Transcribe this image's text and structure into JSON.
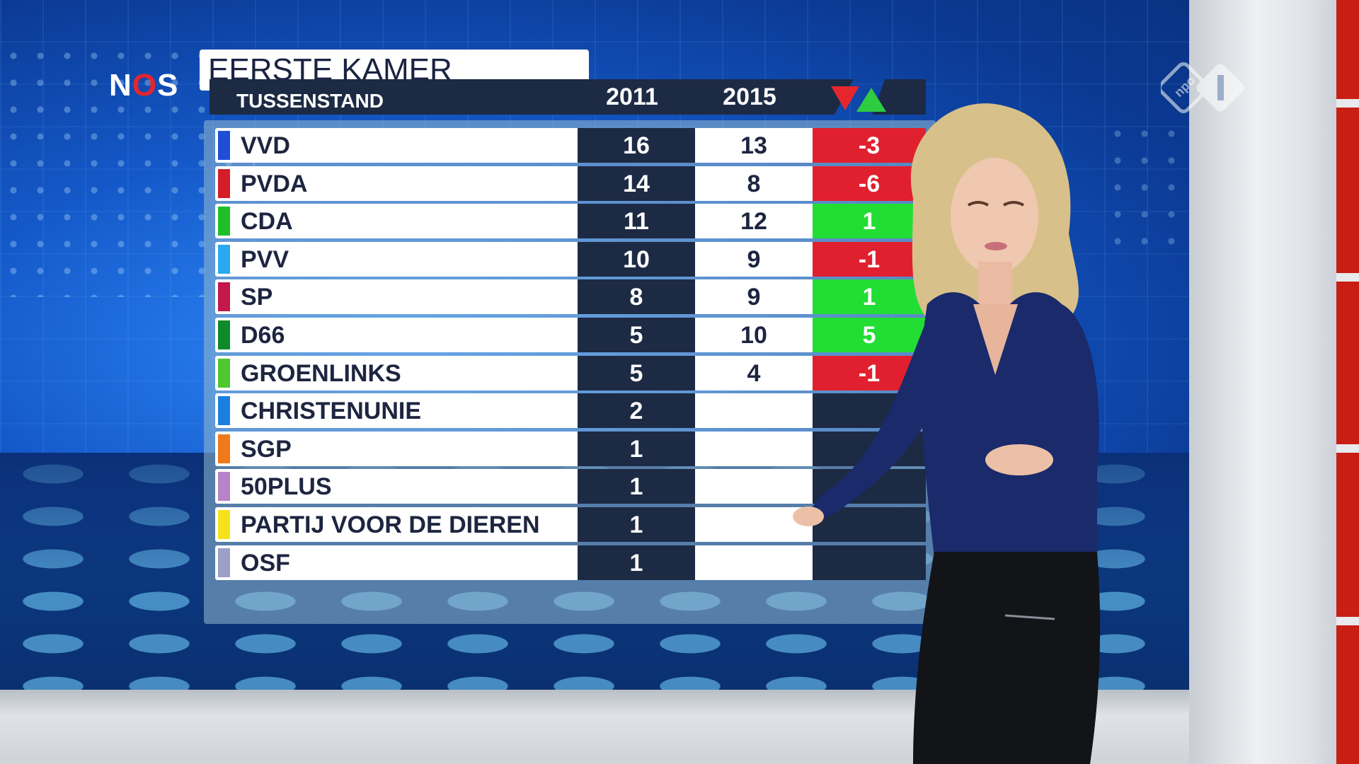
{
  "logos": {
    "broadcaster_left": "NOS",
    "broadcaster_right_icon": "npo1-logo"
  },
  "board": {
    "title": "EERSTE KAMER",
    "subtitle": "TUSSENSTAND",
    "columns": [
      "2011",
      "2015"
    ],
    "change_icons": [
      "down-triangle-icon",
      "up-triangle-icon"
    ],
    "colors": {
      "header": "#1d2a44",
      "loss": "#e0202e",
      "gain": "#22dd33"
    }
  },
  "parties": [
    {
      "name": "VVD",
      "color": "#1e4fd6",
      "s2011": "16",
      "s2015": "13",
      "diff": "-3",
      "trend": "neg"
    },
    {
      "name": "PVDA",
      "color": "#d41e2a",
      "s2011": "14",
      "s2015": "8",
      "diff": "-6",
      "trend": "neg"
    },
    {
      "name": "CDA",
      "color": "#1fbf2a",
      "s2011": "11",
      "s2015": "12",
      "diff": "1",
      "trend": "pos"
    },
    {
      "name": "PVV",
      "color": "#2aa8f0",
      "s2011": "10",
      "s2015": "9",
      "diff": "-1",
      "trend": "neg"
    },
    {
      "name": "SP",
      "color": "#c2184a",
      "s2011": "8",
      "s2015": "9",
      "diff": "1",
      "trend": "pos"
    },
    {
      "name": "D66",
      "color": "#0f8a2a",
      "s2011": "5",
      "s2015": "10",
      "diff": "5",
      "trend": "pos"
    },
    {
      "name": "GROENLINKS",
      "color": "#4fc830",
      "s2011": "5",
      "s2015": "4",
      "diff": "-1",
      "trend": "neg"
    },
    {
      "name": "CHRISTENUNIE",
      "color": "#1b7fe0",
      "s2011": "2",
      "s2015": "",
      "diff": "",
      "trend": "none"
    },
    {
      "name": "SGP",
      "color": "#f07a1a",
      "s2011": "1",
      "s2015": "",
      "diff": "",
      "trend": "none"
    },
    {
      "name": "50PLUS",
      "color": "#b784c8",
      "s2011": "1",
      "s2015": "",
      "diff": "",
      "trend": "none"
    },
    {
      "name": "PARTIJ VOOR DE DIEREN",
      "color": "#f5e21a",
      "s2011": "1",
      "s2015": "",
      "diff": "",
      "trend": "none"
    },
    {
      "name": "OSF",
      "color": "#9aa0c8",
      "s2011": "1",
      "s2015": "",
      "diff": "",
      "trend": "none"
    }
  ]
}
